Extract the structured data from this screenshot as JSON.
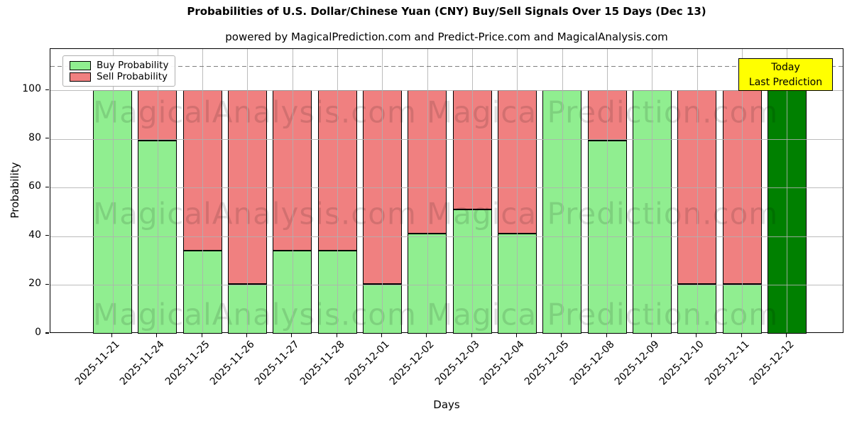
{
  "chart_data": {
    "type": "bar",
    "stacked": true,
    "title": "Probabilities of U.S. Dollar/Chinese Yuan (CNY) Buy/Sell Signals Over 15 Days (Dec 13)",
    "subtitle": "powered by MagicalPrediction.com and Predict-Price.com and MagicalAnalysis.com",
    "xlabel": "Days",
    "ylabel": "Probability",
    "categories": [
      "2025-11-21",
      "2025-11-24",
      "2025-11-25",
      "2025-11-26",
      "2025-11-27",
      "2025-11-28",
      "2025-12-01",
      "2025-12-02",
      "2025-12-03",
      "2025-12-04",
      "2025-12-05",
      "2025-12-08",
      "2025-12-09",
      "2025-12-10",
      "2025-12-11",
      "2025-12-12"
    ],
    "series": [
      {
        "name": "Buy Probability",
        "color": "#90ee90",
        "values": [
          100,
          79.5,
          34,
          20.5,
          34,
          34,
          20.5,
          41,
          51,
          41,
          100,
          79.5,
          100,
          20.5,
          20.5,
          100
        ]
      },
      {
        "name": "Sell Probability",
        "color": "#f08080",
        "values": [
          0,
          20.5,
          66,
          79.5,
          66,
          66,
          79.5,
          59,
          49,
          59,
          0,
          20.5,
          0,
          79.5,
          79.5,
          0
        ]
      }
    ],
    "today_bar": {
      "index": 15,
      "color": "#008000",
      "value": 100
    },
    "yticks": [
      0,
      20,
      40,
      60,
      80,
      100
    ],
    "ylim": [
      0,
      117
    ],
    "grid": true,
    "dashed_line_y": 110,
    "dashed_line_color": "#7f7f7f",
    "legend_position": "upper-left",
    "bar_edge_color": "#000000",
    "annotation": {
      "lines": [
        "Today",
        "Last Prediction"
      ],
      "bg_color": "#ffff00"
    },
    "watermarks": {
      "left_text": "MagicalAnalysis.com",
      "right_text": "Magica Prediction.com",
      "rows": 3
    }
  }
}
